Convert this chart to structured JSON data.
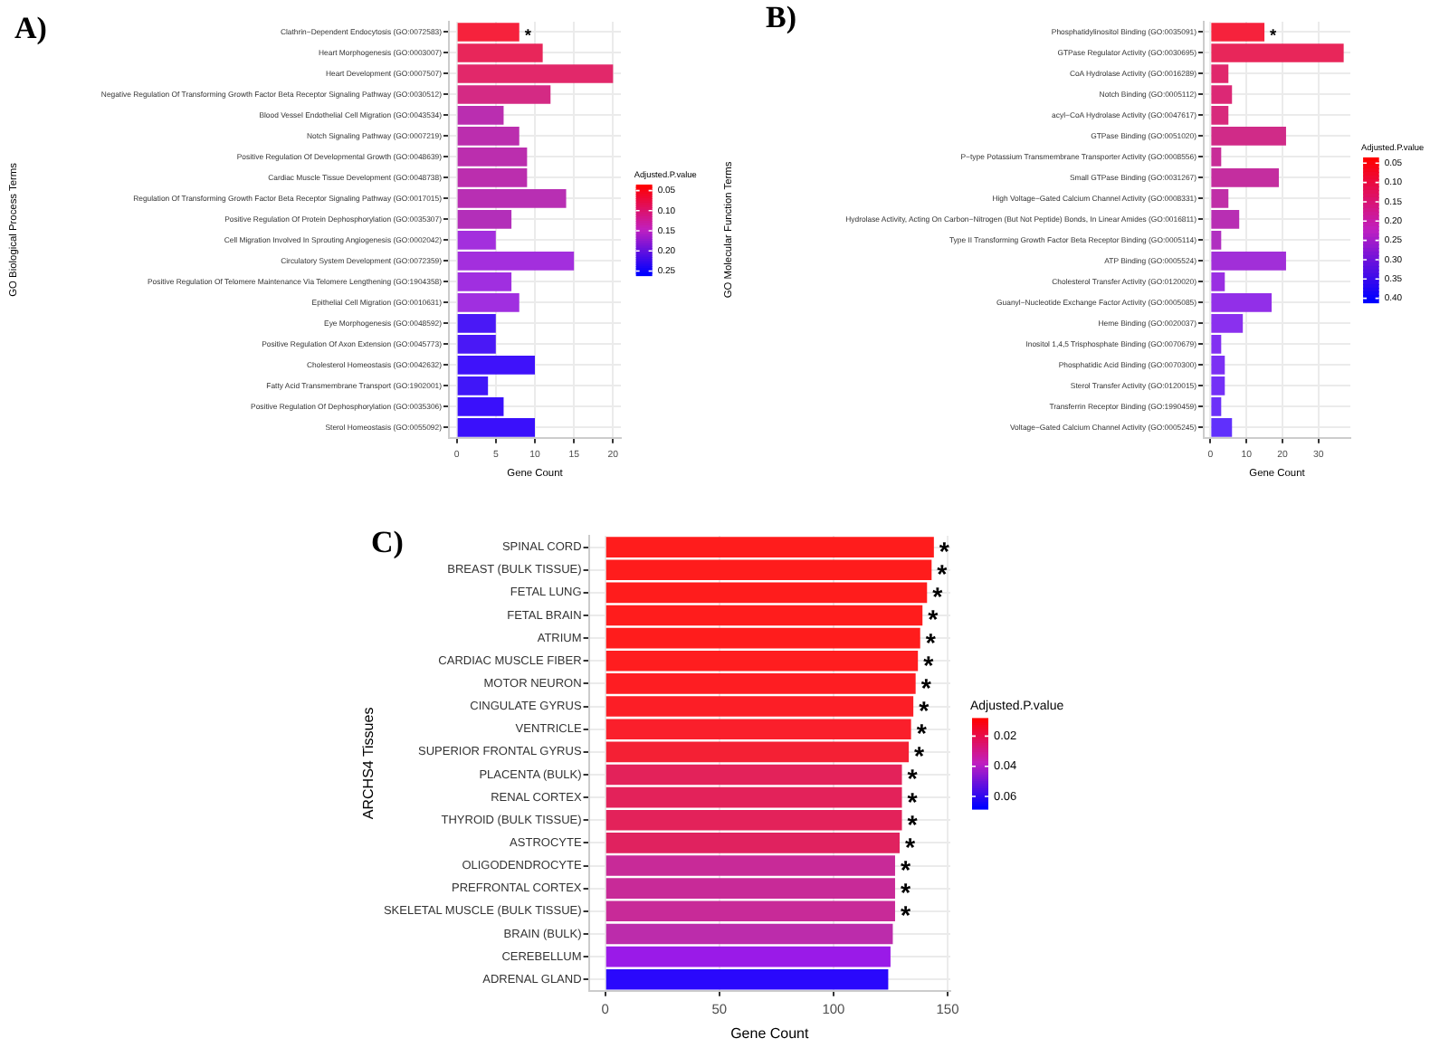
{
  "chart_data": [
    {
      "type": "bar",
      "orientation": "horizontal",
      "title": "A)",
      "xlabel": "Gene Count",
      "ylabel": "GO Biological Process Terms",
      "clabel": "Adjusted.P.value",
      "clim": [
        0.035,
        0.26
      ],
      "cticks": [
        {
          "value": 0.05,
          "label": "0.05"
        },
        {
          "value": 0.1,
          "label": "0.10"
        },
        {
          "value": 0.15,
          "label": "0.15"
        },
        {
          "value": 0.2,
          "label": "0.20"
        },
        {
          "value": 0.25,
          "label": "0.25"
        }
      ],
      "grid": true,
      "xlim": [
        -1,
        21
      ],
      "xticks": [
        0,
        5,
        10,
        15,
        20
      ],
      "categories": [
        "Clathrin−Dependent Endocytosis (GO:0072583)",
        "Heart Morphogenesis (GO:0003007)",
        "Heart Development (GO:0007507)",
        "Negative Regulation Of Transforming Growth Factor Beta Receptor Signaling Pathway (GO:0030512)",
        "Blood Vessel Endothelial Cell Migration (GO:0043534)",
        "Notch Signaling Pathway (GO:0007219)",
        "Positive Regulation Of Developmental Growth (GO:0048639)",
        "Cardiac Muscle Tissue Development (GO:0048738)",
        "Regulation Of Transforming Growth Factor Beta Receptor Signaling Pathway (GO:0017015)",
        "Positive Regulation Of Protein Dephosphorylation (GO:0035307)",
        "Cell Migration Involved In Sprouting Angiogenesis (GO:0002042)",
        "Circulatory System Development (GO:0072359)",
        "Positive Regulation Of Telomere Maintenance Via Telomere Lengthening (GO:1904358)",
        "Epithelial Cell Migration (GO:0010631)",
        "Eye Morphogenesis (GO:0048592)",
        "Positive Regulation Of Axon Extension (GO:0045773)",
        "Cholesterol Homeostasis (GO:0042632)",
        "Fatty Acid Transmembrane Transport (GO:1902001)",
        "Positive Regulation Of Dephosphorylation (GO:0035306)",
        "Sterol Homeostasis (GO:0055092)"
      ],
      "values": [
        8,
        11,
        20,
        12,
        6,
        8,
        9,
        9,
        14,
        7,
        5,
        15,
        7,
        8,
        5,
        5,
        10,
        4,
        6,
        10
      ],
      "value_labels": [
        "*",
        null,
        null,
        null,
        null,
        null,
        null,
        null,
        null,
        null,
        null,
        null,
        null,
        null,
        null,
        null,
        null,
        null,
        null,
        null
      ],
      "colors": [
        "#f6223c",
        "#e8265a",
        "#e2286a",
        "#d42a84",
        "#ba2eb0",
        "#bb2eae",
        "#bb2eae",
        "#bb2eae",
        "#b82fb3",
        "#b32fb9",
        "#a32fdd",
        "#a32fdd",
        "#a02fe0",
        "#a02fe0",
        "#4a18f6",
        "#4a18f6",
        "#3f12fa",
        "#4016f8",
        "#3a10fb",
        "#3a10fb"
      ]
    },
    {
      "type": "bar",
      "orientation": "horizontal",
      "title": "B)",
      "xlabel": "Gene Count",
      "ylabel": "GO Molecular Function Terms",
      "clabel": "Adjusted.P.value",
      "clim": [
        0.035,
        0.41
      ],
      "cticks": [
        {
          "value": 0.05,
          "label": "0.05"
        },
        {
          "value": 0.1,
          "label": "0.10"
        },
        {
          "value": 0.15,
          "label": "0.15"
        },
        {
          "value": 0.2,
          "label": "0.20"
        },
        {
          "value": 0.25,
          "label": "0.25"
        },
        {
          "value": 0.3,
          "label": "0.30"
        },
        {
          "value": 0.35,
          "label": "0.35"
        },
        {
          "value": 0.4,
          "label": "0.40"
        }
      ],
      "grid": true,
      "xlim": [
        -1.85,
        38.85
      ],
      "xticks": [
        0,
        10,
        20,
        30
      ],
      "categories": [
        "Phosphatidylinositol Binding (GO:0035091)",
        "GTPase Regulator Activity (GO:0030695)",
        "CoA Hydrolase Activity (GO:0016289)",
        "Notch Binding (GO:0005112)",
        "acyl−CoA Hydrolase Activity (GO:0047617)",
        "GTPase Binding (GO:0051020)",
        "P−type Potassium Transmembrane Transporter Activity (GO:0008556)",
        "Small GTPase Binding (GO:0031267)",
        "High Voltage−Gated Calcium Channel Activity (GO:0008331)",
        "Hydrolase Activity, Acting On Carbon−Nitrogen (But Not Peptide) Bonds, In Linear Amides (GO:0016811)",
        "Type II Transforming Growth Factor Beta Receptor Binding (GO:0005114)",
        "ATP Binding (GO:0005524)",
        "Cholesterol Transfer Activity (GO:0120020)",
        "Guanyl−Nucleotide Exchange Factor Activity (GO:0005085)",
        "Heme Binding (GO:0020037)",
        "Inositol 1,4,5 Trisphosphate Binding (GO:0070679)",
        "Phosphatidic Acid Binding (GO:0070300)",
        "Sterol Transfer Activity (GO:0120015)",
        "Transferrin Receptor Binding (GO:1990459)",
        "Voltage−Gated Calcium Channel Activity (GO:0005245)"
      ],
      "values": [
        15,
        37,
        5,
        6,
        5,
        21,
        3,
        19,
        5,
        8,
        3,
        21,
        4,
        17,
        9,
        3,
        4,
        4,
        3,
        6
      ],
      "value_labels": [
        "*",
        null,
        null,
        null,
        null,
        null,
        null,
        null,
        null,
        null,
        null,
        null,
        null,
        null,
        null,
        null,
        null,
        null,
        null,
        null
      ],
      "colors": [
        "#f6223c",
        "#e8265a",
        "#e0276c",
        "#dc2875",
        "#d82a7c",
        "#d02b88",
        "#c82d98",
        "#c42e9f",
        "#c02ea7",
        "#b82fb3",
        "#b02fc0",
        "#a12fd8",
        "#9a2fe2",
        "#922fe8",
        "#8a30ee",
        "#8230f2",
        "#7c30f4",
        "#7430f7",
        "#6c30f9",
        "#6030fc"
      ]
    },
    {
      "type": "bar",
      "orientation": "horizontal",
      "title": "C)",
      "xlabel": "Gene Count",
      "ylabel": "ARCHS4 Tissues",
      "clabel": "Adjusted.P.value",
      "clim": [
        0.008,
        0.068
      ],
      "cticks": [
        0.02,
        0.04,
        0.06
      ],
      "grid": true,
      "xlim": [
        -7.2,
        151.2
      ],
      "xticks": [
        0,
        50,
        100,
        150
      ],
      "categories": [
        "SPINAL CORD",
        "BREAST (BULK TISSUE)",
        "FETAL LUNG",
        "FETAL BRAIN",
        "ATRIUM",
        "CARDIAC MUSCLE FIBER",
        "MOTOR NEURON",
        "CINGULATE GYRUS",
        "VENTRICLE",
        "SUPERIOR FRONTAL GYRUS",
        "PLACENTA (BULK)",
        "RENAL CORTEX",
        "THYROID (BULK TISSUE)",
        "ASTROCYTE",
        "OLIGODENDROCYTE",
        "PREFRONTAL CORTEX",
        "SKELETAL MUSCLE (BULK TISSUE)",
        "BRAIN (BULK)",
        "CEREBELLUM",
        "ADRENAL GLAND"
      ],
      "values": [
        144,
        143,
        141,
        139,
        138,
        137,
        136,
        135,
        134,
        133,
        130,
        130,
        130,
        129,
        127,
        127,
        127,
        126,
        125,
        124
      ],
      "value_labels": [
        "*",
        "*",
        "*",
        "*",
        "*",
        "*",
        "*",
        "*",
        "*",
        "*",
        "*",
        "*",
        "*",
        "*",
        "*",
        "*",
        "*",
        null,
        null,
        null
      ],
      "colors": [
        "#ff1c1c",
        "#ff1c1c",
        "#ff1c1c",
        "#ff1c1c",
        "#ff1c1c",
        "#ff1d1f",
        "#fe1d22",
        "#fc1e26",
        "#fa1f2b",
        "#f42034",
        "#e3225a",
        "#e3225a",
        "#e3225a",
        "#e0225f",
        "#c82a98",
        "#c82a98",
        "#c82a98",
        "#bc2cab",
        "#9a1ae8",
        "#2a08fc"
      ]
    }
  ]
}
